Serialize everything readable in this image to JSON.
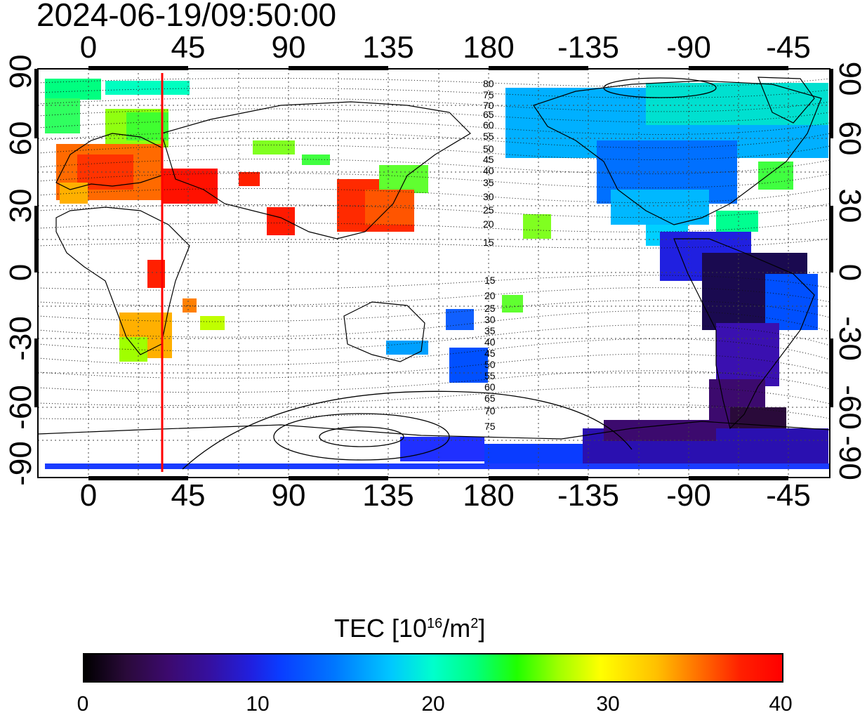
{
  "title": "2024-06-19/09:50:00",
  "map": {
    "x_ticks_top": [
      "0",
      "45",
      "90",
      "135",
      "180",
      "-135",
      "-90",
      "-45"
    ],
    "x_ticks_bottom": [
      "0",
      "45",
      "90",
      "135",
      "180",
      "-135",
      "-90",
      "-45"
    ],
    "y_ticks_left": [
      "90",
      "60",
      "30",
      "0",
      "-30",
      "-60",
      "-90"
    ],
    "y_ticks_right": [
      "90",
      "60",
      "30",
      "0",
      "-30",
      "-60",
      "-90"
    ],
    "contour_labels_north": [
      "80",
      "75",
      "70",
      "65",
      "60",
      "55",
      "50",
      "45",
      "40",
      "35",
      "30",
      "25",
      "20",
      "15"
    ],
    "contour_labels_south": [
      "15",
      "20",
      "25",
      "30",
      "35",
      "40",
      "45",
      "50",
      "55",
      "60",
      "65",
      "70",
      "75"
    ],
    "terminator_color": "#ff0000",
    "frame_color": "#000000"
  },
  "colorbar": {
    "title_prefix": "TEC  [10",
    "title_exp": "16",
    "title_mid": "/m",
    "title_exp2": "2",
    "title_suffix": "]",
    "ticks": [
      "0",
      "10",
      "20",
      "30",
      "40"
    ]
  }
}
